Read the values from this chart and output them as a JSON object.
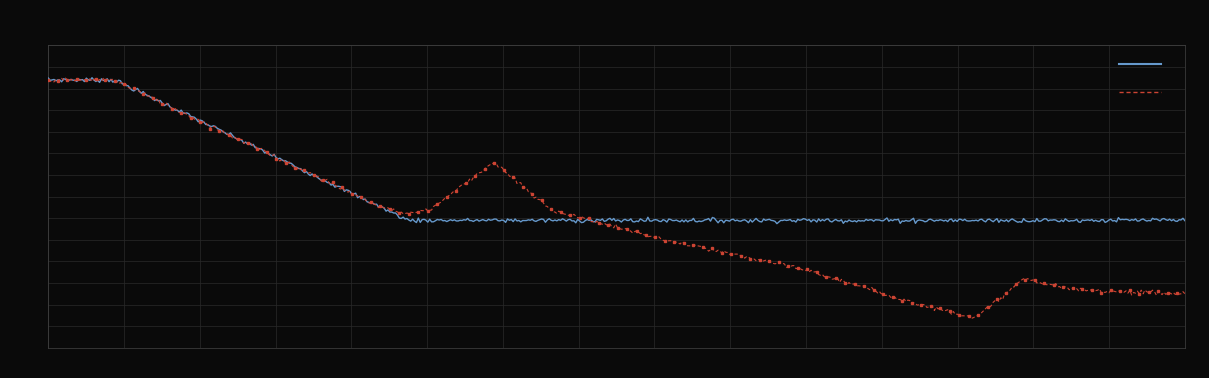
{
  "background_color": "#0a0a0a",
  "plot_bg_color": "#0a0a0a",
  "grid_color": "#2a2a2a",
  "blue_line_color": "#6699cc",
  "red_line_color": "#cc4433",
  "figsize": [
    12.09,
    3.78
  ],
  "dpi": 100,
  "ylim": [
    0,
    7
  ],
  "xlim": [
    0,
    120
  ],
  "spine_color": "#444444"
}
